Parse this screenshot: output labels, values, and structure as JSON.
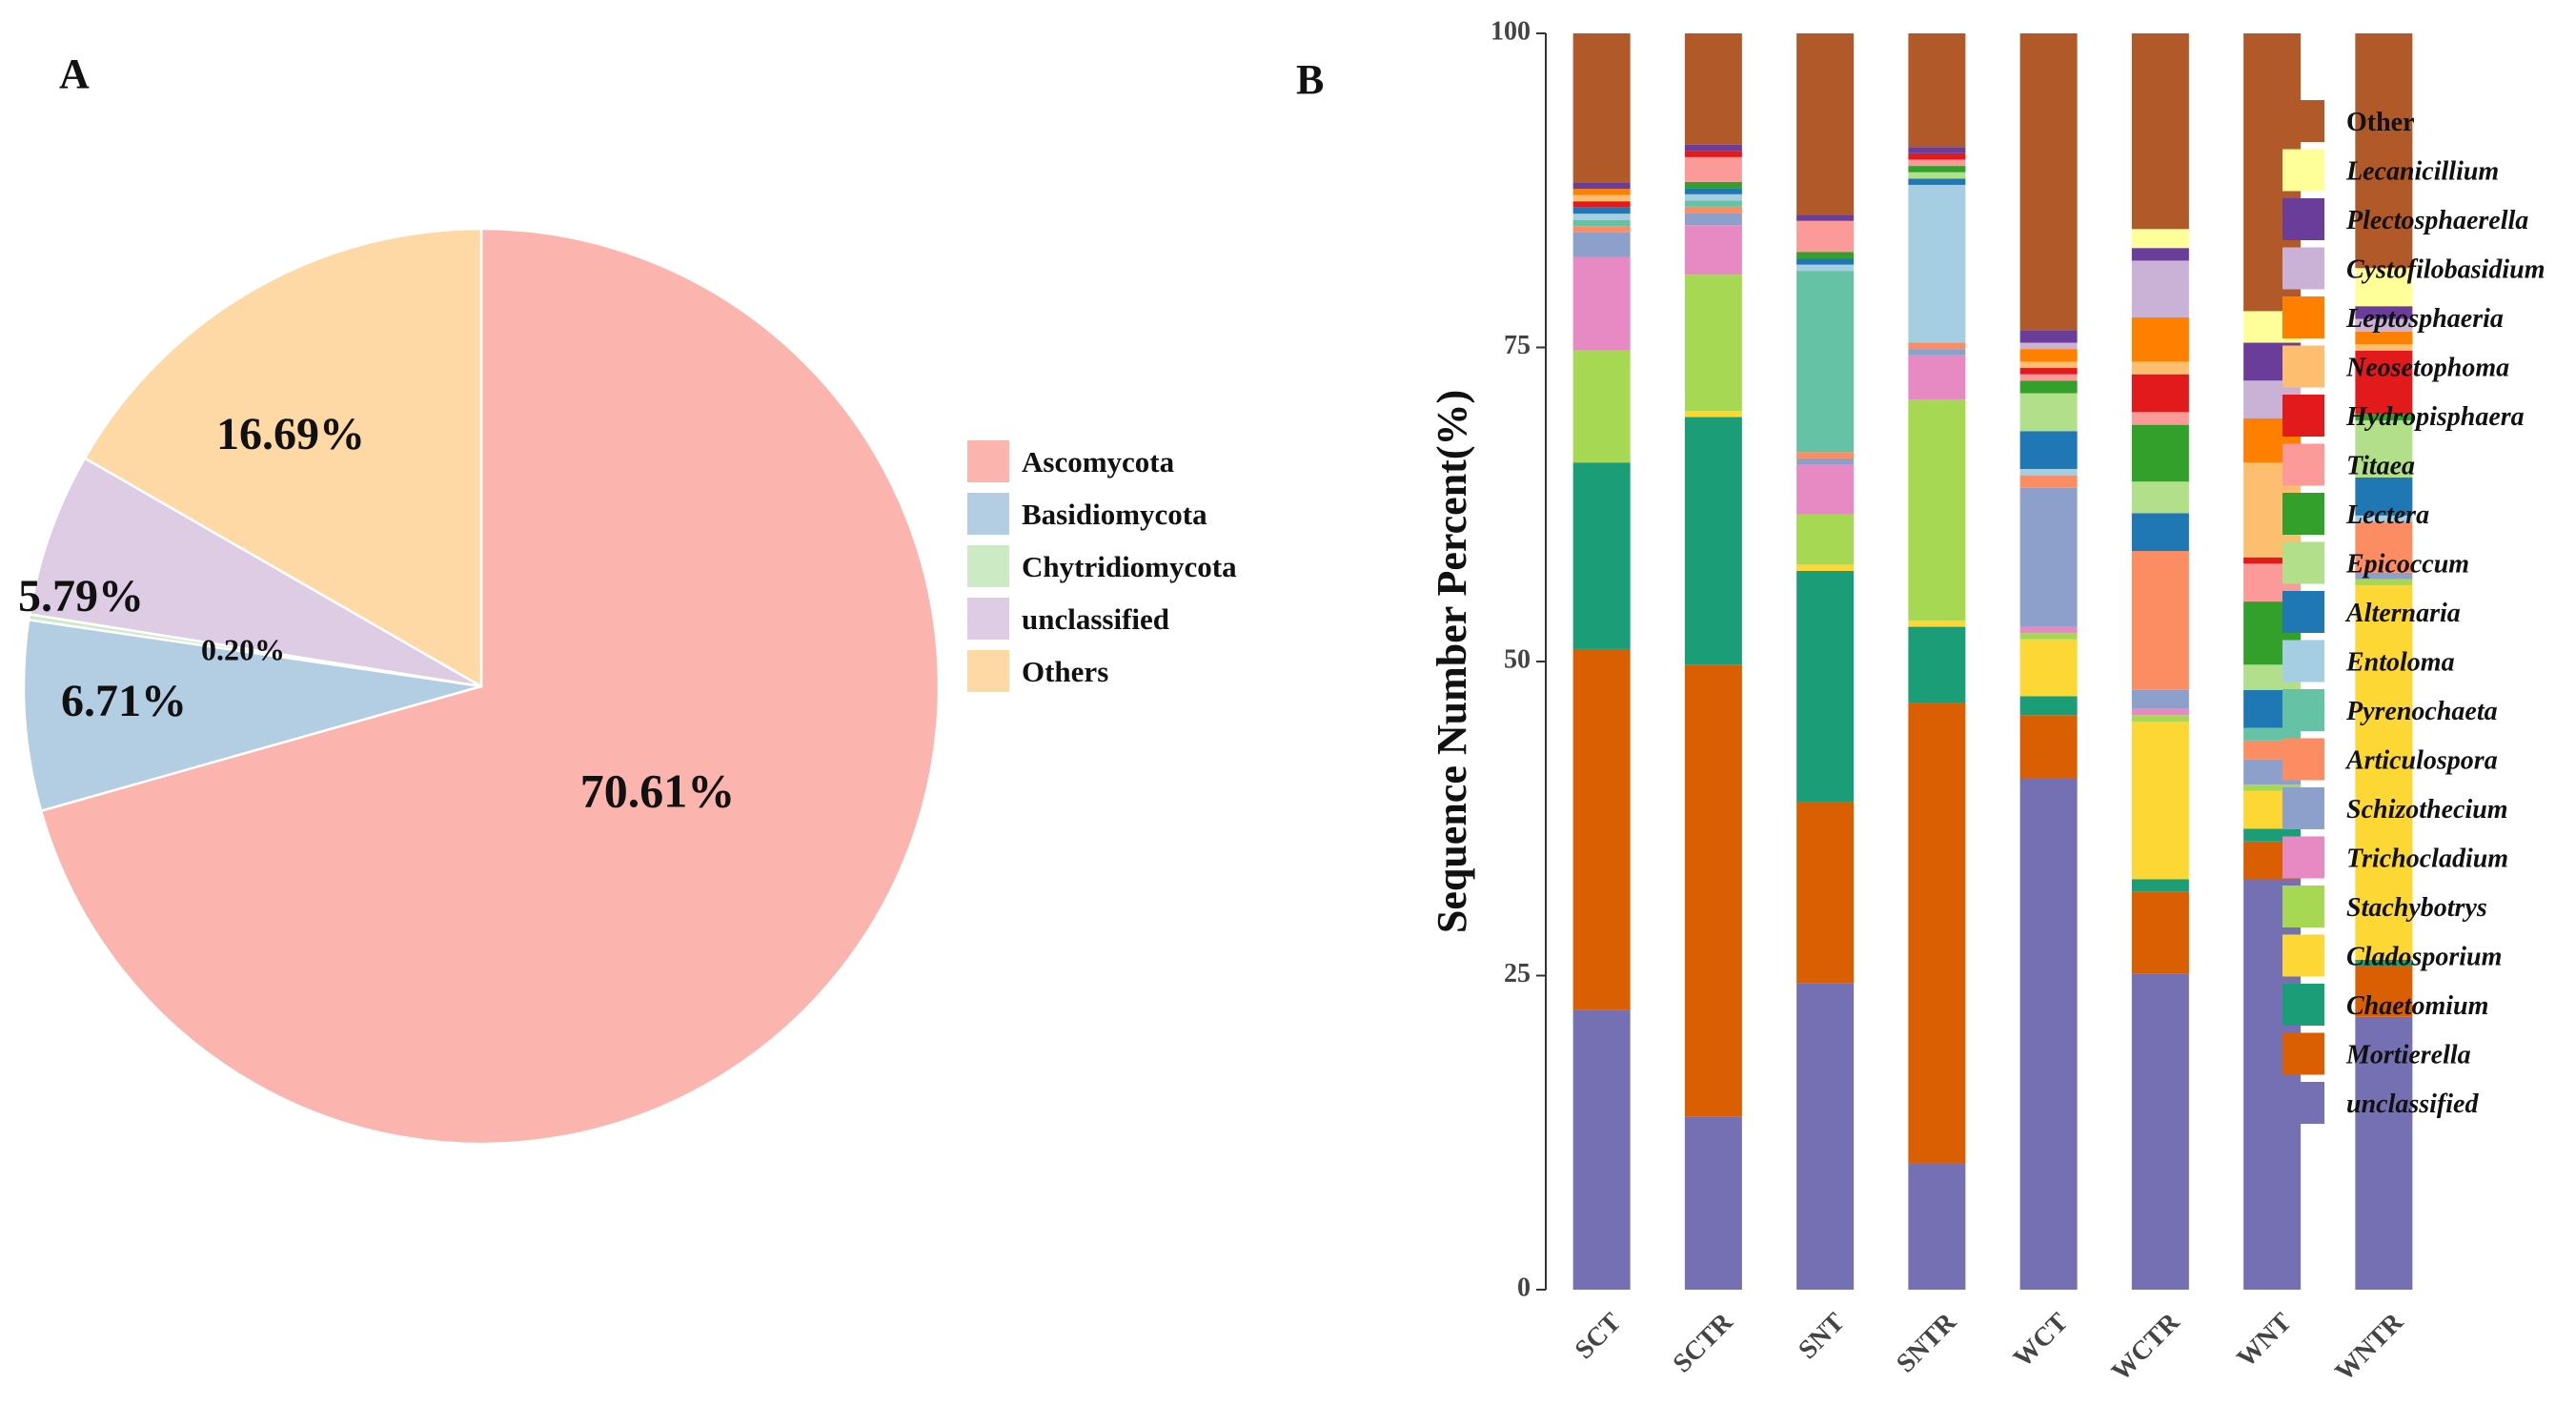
{
  "panels": {
    "a_label": "A",
    "b_label": "B"
  },
  "chart_data": [
    {
      "type": "pie",
      "panel": "A",
      "title": "",
      "labels": [
        "Ascomycota",
        "Basidiomycota",
        "Chytridiomycota",
        "unclassified",
        "Others"
      ],
      "values": [
        70.61,
        6.71,
        0.2,
        5.79,
        16.69
      ],
      "value_labels": [
        "70.61%",
        "6.71%",
        "0.20%",
        "5.79%",
        "16.69%"
      ],
      "colors": [
        "#FBB4AE",
        "#B3CDE3",
        "#CCEBC5",
        "#DECBE4",
        "#FED9A6"
      ],
      "legend_position": "right"
    },
    {
      "type": "bar",
      "stacked": true,
      "panel": "B",
      "title": "",
      "xlabel": "",
      "ylabel": "Sequence Number Percent(%)",
      "ylim": [
        0,
        100
      ],
      "yticks": [
        "0",
        "25",
        "50",
        "75",
        "100"
      ],
      "categories": [
        "SCT",
        "SCTR",
        "SNT",
        "SNTR",
        "WCT",
        "WCTR",
        "WNT",
        "WNTR"
      ],
      "legend_position": "right",
      "series": [
        {
          "name": "unclassified",
          "color": "#7570B3",
          "values": [
            22.5,
            14.0,
            24.5,
            10.0,
            40.5,
            25.0,
            32.5,
            21.5
          ]
        },
        {
          "name": "Mortierella",
          "color": "#D95F02",
          "values": [
            29.0,
            36.5,
            14.5,
            36.5,
            5.0,
            6.5,
            3.0,
            4.0
          ]
        },
        {
          "name": "Chaetomium",
          "color": "#1B9E77",
          "values": [
            15.0,
            20.0,
            18.5,
            6.0,
            1.5,
            1.0,
            1.0,
            0.5
          ]
        },
        {
          "name": "Cladosporium",
          "color": "#FDD835",
          "values": [
            0.0,
            0.5,
            0.5,
            0.5,
            4.5,
            12.5,
            3.0,
            29.5
          ]
        },
        {
          "name": "Stachybotrys",
          "color": "#A6D854",
          "values": [
            9.0,
            11.0,
            4.0,
            17.5,
            0.5,
            0.5,
            0.5,
            0.5
          ]
        },
        {
          "name": "Trichocladium",
          "color": "#E78AC3",
          "values": [
            7.5,
            4.0,
            4.0,
            3.5,
            0.5,
            0.5,
            0.0,
            0.0
          ]
        },
        {
          "name": "Schizothecium",
          "color": "#8DA0CB",
          "values": [
            2.0,
            1.0,
            0.5,
            0.5,
            11.0,
            1.5,
            2.0,
            0.5
          ]
        },
        {
          "name": "Articulospora",
          "color": "#FC8D62",
          "values": [
            0.5,
            0.5,
            0.5,
            0.5,
            1.0,
            11.0,
            1.5,
            4.0
          ]
        },
        {
          "name": "Pyrenochaeta",
          "color": "#66C2A5",
          "values": [
            0.5,
            0.5,
            14.5,
            0.0,
            0.0,
            0.0,
            1.0,
            0.0
          ]
        },
        {
          "name": "Entoloma",
          "color": "#A6CEE3",
          "values": [
            0.5,
            0.5,
            0.5,
            12.5,
            0.5,
            0.0,
            0.0,
            0.5
          ]
        },
        {
          "name": "Alternaria",
          "color": "#1F78B4",
          "values": [
            0.5,
            0.5,
            0.5,
            0.5,
            3.0,
            3.0,
            3.0,
            3.0
          ]
        },
        {
          "name": "Epicoccum",
          "color": "#B2DF8A",
          "values": [
            0.0,
            0.0,
            0.0,
            0.5,
            3.0,
            2.5,
            2.0,
            4.5
          ]
        },
        {
          "name": "Lectera",
          "color": "#33A02C",
          "values": [
            0.0,
            0.5,
            0.5,
            0.5,
            1.0,
            4.5,
            5.0,
            0.5
          ]
        },
        {
          "name": "Titaea",
          "color": "#FB9A99",
          "values": [
            0.0,
            2.0,
            2.5,
            0.5,
            0.5,
            1.0,
            3.0,
            0.0
          ]
        },
        {
          "name": "Hydropisphaera",
          "color": "#E31A1C",
          "values": [
            0.5,
            0.5,
            0.0,
            0.5,
            0.5,
            3.0,
            0.5,
            5.0
          ]
        },
        {
          "name": "Neosetophoma",
          "color": "#FDBF6F",
          "values": [
            0.5,
            0.0,
            0.0,
            0.0,
            0.5,
            1.0,
            7.5,
            0.5
          ]
        },
        {
          "name": "Leptosphaeria",
          "color": "#FF7F00",
          "values": [
            0.5,
            0.0,
            0.0,
            0.0,
            1.0,
            3.5,
            3.5,
            1.0
          ]
        },
        {
          "name": "Cystofilobasidium",
          "color": "#CAB2D6",
          "values": [
            0.0,
            0.0,
            0.0,
            0.0,
            0.5,
            4.5,
            3.0,
            1.0
          ]
        },
        {
          "name": "Plectosphaerella",
          "color": "#6A3D9A",
          "values": [
            0.5,
            0.5,
            0.5,
            0.5,
            1.0,
            1.0,
            3.0,
            1.0
          ]
        },
        {
          "name": "Lecanicillium",
          "color": "#FFFF99",
          "values": [
            0.0,
            0.0,
            0.0,
            0.0,
            0.0,
            1.5,
            2.5,
            3.0
          ]
        },
        {
          "name": "Other",
          "color": "#B15928",
          "values": [
            12.0,
            9.0,
            14.5,
            9.0,
            23.5,
            15.5,
            22.0,
            18.5
          ]
        }
      ]
    }
  ]
}
